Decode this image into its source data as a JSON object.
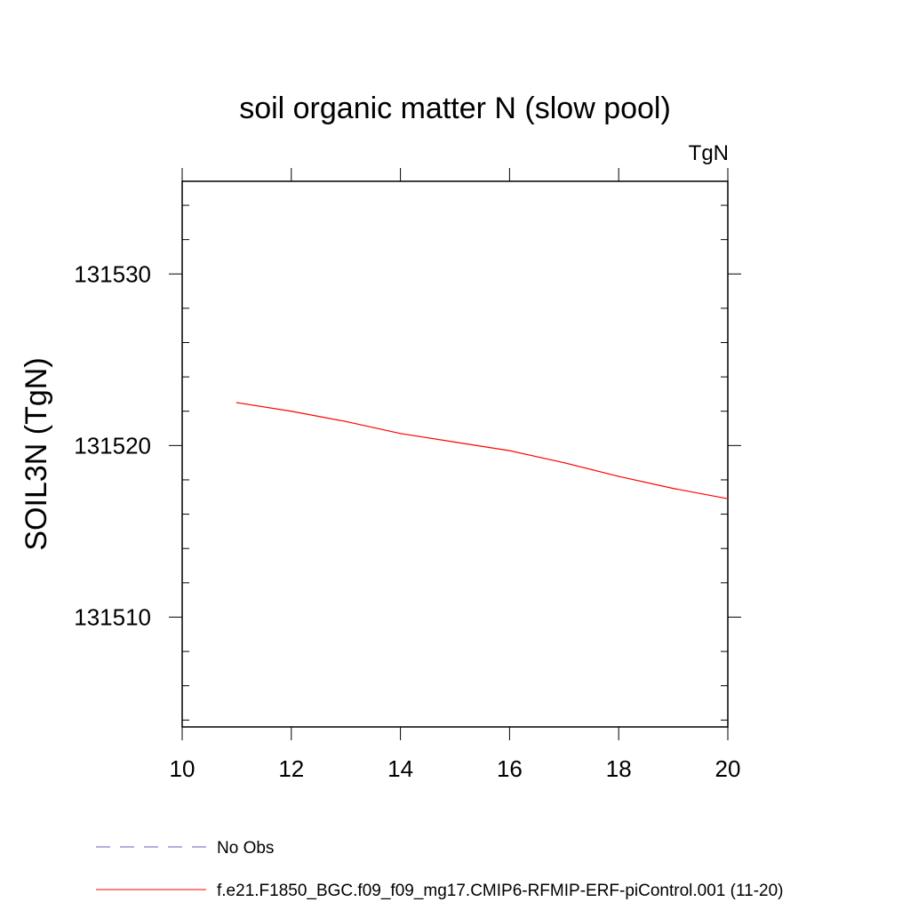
{
  "chart_data": {
    "type": "line",
    "title": "soil organic matter N (slow pool)",
    "units_label": "TgN",
    "ylabel": "SOIL3N  (TgN)",
    "xlabel": "",
    "xlim": [
      10,
      20
    ],
    "ylim": [
      131503.6,
      131535.4
    ],
    "x_ticks": [
      "10",
      "12",
      "14",
      "16",
      "18",
      "20"
    ],
    "y_ticks": [
      "131510",
      "131520",
      "131530"
    ],
    "series": [
      {
        "name": "f.e21.F1850_BGC.f09_f09_mg17.CMIP6-RFMIP-ERF-piControl.001 (11-20)",
        "color": "#ff0000",
        "dash": "solid",
        "x": [
          11,
          12,
          13,
          14,
          15,
          16,
          17,
          18,
          19,
          20
        ],
        "values": [
          131522.5,
          131522.0,
          131521.4,
          131520.7,
          131520.2,
          131519.7,
          131519.0,
          131518.2,
          131517.5,
          131516.9
        ]
      }
    ],
    "legend": [
      {
        "label": "No Obs",
        "color": "#6a5acd",
        "dash": "dashed"
      },
      {
        "label": "f.e21.F1850_BGC.f09_f09_mg17.CMIP6-RFMIP-ERF-piControl.001 (11-20)",
        "color": "#ff0000",
        "dash": "solid"
      }
    ],
    "legend_position": "bottom",
    "grid": false
  }
}
